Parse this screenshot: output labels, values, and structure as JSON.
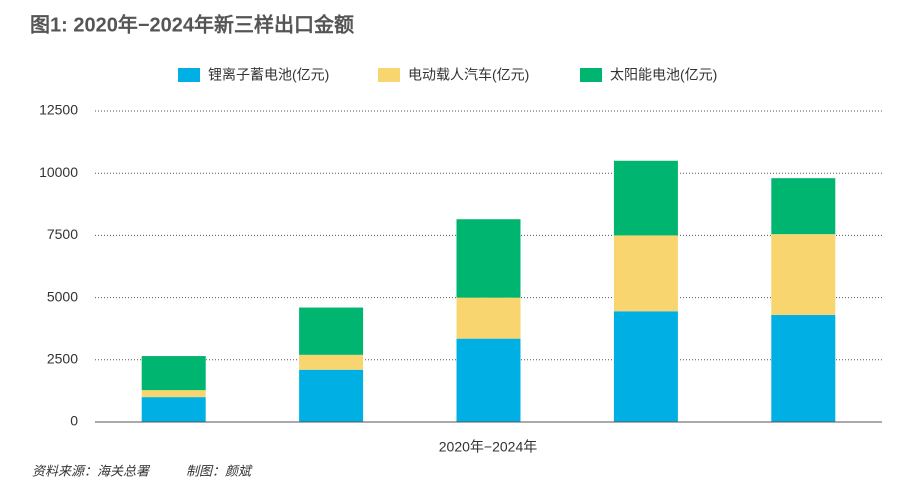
{
  "chart_data": {
    "type": "stacked_bar",
    "title": "图1: 2020年−2024年新三样出口金额",
    "xlabel": "2020年−2024年",
    "source": "资料来源：海关总署",
    "credit": "制图：颜斌",
    "categories": [
      null,
      null,
      null,
      null,
      null
    ],
    "series": [
      {
        "name": "锂离子蓄电池(亿元)",
        "color": "#00b0e4",
        "values": [
          1000,
          2100,
          3350,
          4450,
          4300
        ]
      },
      {
        "name": "电动载人汽车(亿元)",
        "color": "#f8d56f",
        "values": [
          280,
          600,
          1650,
          3050,
          3250
        ]
      },
      {
        "name": "太阳能电池(亿元)",
        "color": "#00b56f",
        "values": [
          1370,
          1900,
          3150,
          3000,
          2250
        ]
      }
    ],
    "ylim": [
      0,
      12500
    ],
    "yticks": [
      0,
      2500,
      5000,
      7500,
      10000,
      12500
    ],
    "grid": true
  }
}
